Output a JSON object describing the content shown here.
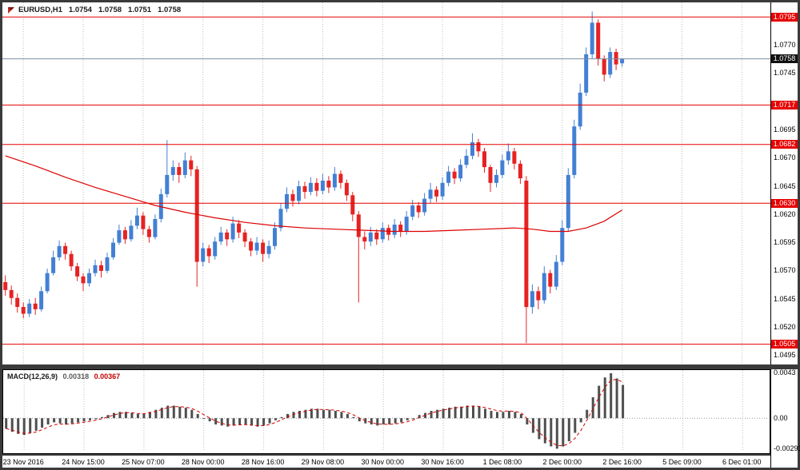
{
  "window": {
    "title_symbol": "EURUSD,H1",
    "quote_open": "1.0754",
    "quote_high": "1.0758",
    "quote_low": "1.0751",
    "quote_close": "1.0758"
  },
  "colors": {
    "up": "#4380d4",
    "down": "#e62222",
    "level": "#e60000",
    "level_badge_bg": "#e60000",
    "current_line": "#7c8ea0",
    "current_badge_bg": "#111111",
    "ma": "#dd0000",
    "histogram": "#4f4f4f",
    "signal": "#d40000",
    "grid": "#bdbdbd",
    "panel_bg": "#ffffff",
    "frame_bg": "#3a3a3a",
    "axis_text": "#000000"
  },
  "chart_data": [
    {
      "type": "candlestick",
      "title": "EURUSD,H1",
      "x_labels": [
        "23 Nov 2016",
        "24 Nov 15:00",
        "25 Nov 07:00",
        "28 Nov 00:00",
        "28 Nov 16:00",
        "29 Nov 08:00",
        "30 Nov 00:00",
        "30 Nov 16:00",
        "1 Dec 08:00",
        "2 Dec 00:00",
        "2 Dec 16:00",
        "5 Dec 09:00",
        "6 Dec 01:00"
      ],
      "grid_start_slot": 3,
      "grid_step": 10,
      "total_slots": 128,
      "y_range": [
        1.0487,
        1.0808
      ],
      "y_ticks": [
        1.077,
        1.0745,
        1.0695,
        1.067,
        1.0645,
        1.062,
        1.0595,
        1.057,
        1.0545,
        1.052,
        1.0495
      ],
      "levels": [
        {
          "value": 1.0795,
          "label": "1.0795"
        },
        {
          "value": 1.0717,
          "label": "1.0717"
        },
        {
          "value": 1.0682,
          "label": "1.0682"
        },
        {
          "value": 1.063,
          "label": "1.0630"
        },
        {
          "value": 1.0505,
          "label": "1.0505"
        }
      ],
      "current_price": {
        "value": 1.0758,
        "label": "1.0758"
      },
      "ma_points": [
        [
          0,
          1.0672
        ],
        [
          5,
          1.0663
        ],
        [
          10,
          1.0653
        ],
        [
          15,
          1.0644
        ],
        [
          20,
          1.0636
        ],
        [
          25,
          1.0628
        ],
        [
          30,
          1.0622
        ],
        [
          35,
          1.0617
        ],
        [
          40,
          1.0613
        ],
        [
          45,
          1.061
        ],
        [
          50,
          1.0608
        ],
        [
          55,
          1.0607
        ],
        [
          60,
          1.0606
        ],
        [
          65,
          1.0605
        ],
        [
          70,
          1.0605
        ],
        [
          75,
          1.0606
        ],
        [
          80,
          1.0607
        ],
        [
          85,
          1.0608
        ],
        [
          88,
          1.0607
        ],
        [
          91,
          1.0605
        ],
        [
          94,
          1.0605
        ],
        [
          97,
          1.0608
        ],
        [
          100,
          1.0614
        ],
        [
          103,
          1.0624
        ]
      ],
      "candles": [
        [
          1.056,
          1.0566,
          1.0548,
          1.0553
        ],
        [
          1.0553,
          1.0557,
          1.054,
          1.0546
        ],
        [
          1.0546,
          1.055,
          1.0533,
          1.0538
        ],
        [
          1.0538,
          1.0542,
          1.0528,
          1.0532
        ],
        [
          1.0532,
          1.0545,
          1.0529,
          1.0541
        ],
        [
          1.0541,
          1.0546,
          1.0531,
          1.0536
        ],
        [
          1.0536,
          1.0556,
          1.0534,
          1.0552
        ],
        [
          1.0552,
          1.0572,
          1.055,
          1.0568
        ],
        [
          1.0568,
          1.0588,
          1.0566,
          1.0582
        ],
        [
          1.0582,
          1.0597,
          1.0579,
          1.0592
        ],
        [
          1.0592,
          1.0595,
          1.058,
          1.0585
        ],
        [
          1.0585,
          1.0588,
          1.057,
          1.0574
        ],
        [
          1.0574,
          1.0577,
          1.0561,
          1.0565
        ],
        [
          1.0565,
          1.0568,
          1.0552,
          1.0559
        ],
        [
          1.0559,
          1.0572,
          1.0556,
          1.0568
        ],
        [
          1.0568,
          1.058,
          1.0565,
          1.0575
        ],
        [
          1.0575,
          1.0579,
          1.0564,
          1.057
        ],
        [
          1.057,
          1.0586,
          1.0568,
          1.0582
        ],
        [
          1.0582,
          1.0599,
          1.058,
          1.0595
        ],
        [
          1.0595,
          1.0611,
          1.0593,
          1.0606
        ],
        [
          1.0606,
          1.0609,
          1.0594,
          1.0598
        ],
        [
          1.0598,
          1.0615,
          1.0596,
          1.061
        ],
        [
          1.061,
          1.0626,
          1.0607,
          1.0619
        ],
        [
          1.0619,
          1.0622,
          1.0602,
          1.0607
        ],
        [
          1.0607,
          1.061,
          1.0595,
          1.06
        ],
        [
          1.06,
          1.062,
          1.0598,
          1.0616
        ],
        [
          1.0616,
          1.0643,
          1.0613,
          1.0638
        ],
        [
          1.0638,
          1.0686,
          1.0635,
          1.0655
        ],
        [
          1.0655,
          1.0668,
          1.065,
          1.0662
        ],
        [
          1.0662,
          1.0666,
          1.0648,
          1.0655
        ],
        [
          1.0655,
          1.0675,
          1.0652,
          1.0668
        ],
        [
          1.0668,
          1.0672,
          1.0654,
          1.066
        ],
        [
          1.066,
          1.0663,
          1.0556,
          1.0578
        ],
        [
          1.0578,
          1.0595,
          1.0574,
          1.059
        ],
        [
          1.059,
          1.0593,
          1.0577,
          1.0583
        ],
        [
          1.0583,
          1.06,
          1.058,
          1.0596
        ],
        [
          1.0596,
          1.0609,
          1.0593,
          1.0604
        ],
        [
          1.0604,
          1.0607,
          1.0592,
          1.0598
        ],
        [
          1.0598,
          1.0618,
          1.0595,
          1.0612
        ],
        [
          1.0612,
          1.0615,
          1.0599,
          1.0604
        ],
        [
          1.0604,
          1.0607,
          1.0591,
          1.0596
        ],
        [
          1.0596,
          1.0599,
          1.0583,
          1.0588
        ],
        [
          1.0588,
          1.06,
          1.0584,
          1.0595
        ],
        [
          1.0595,
          1.0598,
          1.0578,
          1.0585
        ],
        [
          1.0585,
          1.0597,
          1.0581,
          1.0592
        ],
        [
          1.0592,
          1.0613,
          1.0589,
          1.0608
        ],
        [
          1.0608,
          1.063,
          1.0605,
          1.0625
        ],
        [
          1.0625,
          1.0644,
          1.0622,
          1.0638
        ],
        [
          1.0638,
          1.0642,
          1.0627,
          1.0632
        ],
        [
          1.0632,
          1.065,
          1.0629,
          1.0645
        ],
        [
          1.0645,
          1.0649,
          1.0634,
          1.064
        ],
        [
          1.064,
          1.0653,
          1.0637,
          1.0648
        ],
        [
          1.0648,
          1.0652,
          1.0636,
          1.0641
        ],
        [
          1.0641,
          1.0656,
          1.0638,
          1.065
        ],
        [
          1.065,
          1.0654,
          1.0639,
          1.0644
        ],
        [
          1.0644,
          1.0662,
          1.0641,
          1.0656
        ],
        [
          1.0656,
          1.0659,
          1.0643,
          1.0648
        ],
        [
          1.0648,
          1.0651,
          1.0632,
          1.0637
        ],
        [
          1.0637,
          1.064,
          1.0614,
          1.062
        ],
        [
          1.062,
          1.0623,
          1.0542,
          1.06
        ],
        [
          1.06,
          1.0605,
          1.0589,
          1.0596
        ],
        [
          1.0596,
          1.0609,
          1.0592,
          1.0604
        ],
        [
          1.0604,
          1.0607,
          1.0593,
          1.0598
        ],
        [
          1.0598,
          1.0613,
          1.0595,
          1.0608
        ],
        [
          1.0608,
          1.0611,
          1.0597,
          1.0602
        ],
        [
          1.0602,
          1.0616,
          1.0599,
          1.0611
        ],
        [
          1.0611,
          1.0614,
          1.06,
          1.0605
        ],
        [
          1.0605,
          1.0623,
          1.0602,
          1.0618
        ],
        [
          1.0618,
          1.0633,
          1.0615,
          1.0628
        ],
        [
          1.0628,
          1.0631,
          1.0617,
          1.0622
        ],
        [
          1.0622,
          1.0639,
          1.0619,
          1.0634
        ],
        [
          1.0634,
          1.0648,
          1.063,
          1.0642
        ],
        [
          1.0642,
          1.0645,
          1.0631,
          1.0636
        ],
        [
          1.0636,
          1.0653,
          1.0633,
          1.0648
        ],
        [
          1.0648,
          1.0663,
          1.0645,
          1.0658
        ],
        [
          1.0658,
          1.0661,
          1.0647,
          1.0652
        ],
        [
          1.0652,
          1.0669,
          1.0649,
          1.0664
        ],
        [
          1.0664,
          1.0678,
          1.0661,
          1.0672
        ],
        [
          1.0672,
          1.0692,
          1.0669,
          1.0684
        ],
        [
          1.0684,
          1.0687,
          1.0671,
          1.0676
        ],
        [
          1.0676,
          1.0679,
          1.0657,
          1.0662
        ],
        [
          1.0662,
          1.0664,
          1.064,
          1.0648
        ],
        [
          1.0648,
          1.066,
          1.0644,
          1.0655
        ],
        [
          1.0655,
          1.0673,
          1.0652,
          1.0668
        ],
        [
          1.0668,
          1.0683,
          1.0664,
          1.0676
        ],
        [
          1.0676,
          1.0679,
          1.066,
          1.0665
        ],
        [
          1.0665,
          1.0668,
          1.0647,
          1.0652
        ],
        [
          1.065,
          1.0654,
          1.0506,
          1.0538
        ],
        [
          1.0538,
          1.0558,
          1.0532,
          1.0552
        ],
        [
          1.0552,
          1.0556,
          1.0536,
          1.0544
        ],
        [
          1.0544,
          1.0574,
          1.0541,
          1.0568
        ],
        [
          1.0568,
          1.0571,
          1.055,
          1.0556
        ],
        [
          1.0556,
          1.0584,
          1.0553,
          1.0578
        ],
        [
          1.0578,
          1.0615,
          1.0575,
          1.0608
        ],
        [
          1.0608,
          1.0661,
          1.0605,
          1.0655
        ],
        [
          1.0655,
          1.0704,
          1.0652,
          1.0698
        ],
        [
          1.0698,
          1.0736,
          1.0695,
          1.0728
        ],
        [
          1.0728,
          1.0768,
          1.0725,
          1.0762
        ],
        [
          1.0762,
          1.08,
          1.0758,
          1.079
        ],
        [
          1.079,
          1.0793,
          1.0752,
          1.0758
        ],
        [
          1.0758,
          1.0761,
          1.0738,
          1.0744
        ],
        [
          1.0744,
          1.0768,
          1.0741,
          1.0764
        ],
        [
          1.0764,
          1.0767,
          1.0748,
          1.0753
        ],
        [
          1.0754,
          1.0758,
          1.0751,
          1.0758
        ]
      ]
    },
    {
      "type": "bar",
      "title": "MACD(12,26,9)",
      "value_main": "0.00318",
      "value_signal": "0.00367",
      "y_range": [
        -0.0032,
        0.0046
      ],
      "y_ticks": [
        {
          "value": 0.0043,
          "label": "0.0043"
        },
        {
          "value": 0,
          "label": "0.00"
        },
        {
          "value": -0.00291,
          "label": "-0.00291"
        }
      ],
      "signal_smoothing": 0.5,
      "values": [
        -0.001,
        -0.0013,
        -0.0015,
        -0.0016,
        -0.0014,
        -0.0012,
        -0.0009,
        -0.0006,
        -0.0004,
        -0.0005,
        -0.0006,
        -0.0005,
        -0.0004,
        -0.0003,
        -0.0002,
        -0.0001,
        0.0001,
        0.0003,
        0.0005,
        0.0006,
        0.0006,
        0.0005,
        0.0004,
        0.0004,
        0.0006,
        0.0008,
        0.001,
        0.0012,
        0.0012,
        0.0011,
        0.001,
        0.0008,
        0.0004,
        0.0,
        -0.0003,
        -0.0006,
        -0.0007,
        -0.0008,
        -0.0007,
        -0.0006,
        -0.0006,
        -0.0007,
        -0.0008,
        -0.0007,
        -0.0005,
        -0.0002,
        0.0001,
        0.0004,
        0.0006,
        0.0007,
        0.0008,
        0.0009,
        0.0009,
        0.0008,
        0.0008,
        0.0007,
        0.0006,
        0.0004,
        0.0001,
        -0.0003,
        -0.0005,
        -0.0006,
        -0.0007,
        -0.0006,
        -0.0006,
        -0.0005,
        -0.0004,
        -0.0002,
        0.0,
        0.0003,
        0.0005,
        0.0007,
        0.0008,
        0.0009,
        0.001,
        0.0011,
        0.0011,
        0.0012,
        0.0012,
        0.0011,
        0.0009,
        0.0007,
        0.0006,
        0.0006,
        0.0007,
        0.0006,
        0.0004,
        -0.0006,
        -0.0014,
        -0.002,
        -0.0024,
        -0.0027,
        -0.00291,
        -0.0027,
        -0.0022,
        -0.0014,
        -0.0004,
        0.0008,
        0.002,
        0.0031,
        0.0039,
        0.0043,
        0.0038,
        0.00318
      ]
    }
  ]
}
